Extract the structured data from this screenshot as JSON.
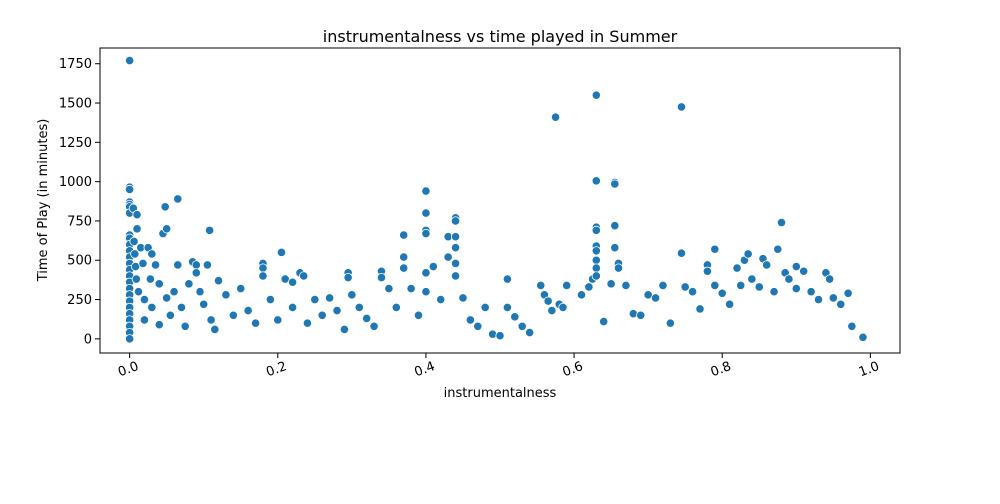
{
  "chart_data": {
    "type": "scatter",
    "title": "instrumentalness vs time played in Summer",
    "xlabel": "instrumentalness",
    "ylabel": "Time of Play (in minutes)",
    "xlim": [
      -0.04,
      1.04
    ],
    "ylim": [
      -90,
      1850
    ],
    "xticks": [
      0.0,
      0.2,
      0.4,
      0.6,
      0.8,
      1.0
    ],
    "xtick_labels": [
      "0.0",
      "0.2",
      "0.4",
      "0.6",
      "0.8",
      "1.0"
    ],
    "yticks": [
      0,
      250,
      500,
      750,
      1000,
      1250,
      1500,
      1750
    ],
    "ytick_labels": [
      "0",
      "250",
      "500",
      "750",
      "1000",
      "1250",
      "1500",
      "1750"
    ],
    "grid": false,
    "legend": "none",
    "marker_color": "#1f77b4",
    "marker_edge_color": "#ffffff",
    "x_tick_rotation_deg": 20,
    "series": [
      {
        "points": [
          [
            0.0,
            1770
          ],
          [
            0.0,
            965
          ],
          [
            0.0,
            950
          ],
          [
            0.0,
            870
          ],
          [
            0.0,
            855
          ],
          [
            0.0,
            840
          ],
          [
            0.0,
            800
          ],
          [
            0.0,
            660
          ],
          [
            0.0,
            640
          ],
          [
            0.0,
            600
          ],
          [
            0.0,
            560
          ],
          [
            0.0,
            520
          ],
          [
            0.0,
            480
          ],
          [
            0.0,
            440
          ],
          [
            0.0,
            400
          ],
          [
            0.0,
            360
          ],
          [
            0.0,
            320
          ],
          [
            0.0,
            280
          ],
          [
            0.0,
            240
          ],
          [
            0.0,
            200
          ],
          [
            0.0,
            160
          ],
          [
            0.0,
            120
          ],
          [
            0.0,
            80
          ],
          [
            0.0,
            40
          ],
          [
            0.0,
            0
          ],
          [
            0.005,
            830
          ],
          [
            0.006,
            620
          ],
          [
            0.007,
            540
          ],
          [
            0.008,
            460
          ],
          [
            0.009,
            380
          ],
          [
            0.01,
            790
          ],
          [
            0.01,
            700
          ],
          [
            0.012,
            300
          ],
          [
            0.015,
            580
          ],
          [
            0.018,
            480
          ],
          [
            0.02,
            250
          ],
          [
            0.02,
            120
          ],
          [
            0.025,
            580
          ],
          [
            0.028,
            380
          ],
          [
            0.03,
            540
          ],
          [
            0.03,
            200
          ],
          [
            0.035,
            470
          ],
          [
            0.04,
            350
          ],
          [
            0.04,
            90
          ],
          [
            0.045,
            670
          ],
          [
            0.048,
            840
          ],
          [
            0.05,
            700
          ],
          [
            0.05,
            260
          ],
          [
            0.055,
            150
          ],
          [
            0.06,
            300
          ],
          [
            0.065,
            890
          ],
          [
            0.065,
            470
          ],
          [
            0.07,
            200
          ],
          [
            0.075,
            80
          ],
          [
            0.08,
            350
          ],
          [
            0.085,
            490
          ],
          [
            0.09,
            470
          ],
          [
            0.09,
            420
          ],
          [
            0.095,
            300
          ],
          [
            0.1,
            220
          ],
          [
            0.105,
            470
          ],
          [
            0.108,
            690
          ],
          [
            0.11,
            120
          ],
          [
            0.115,
            60
          ],
          [
            0.12,
            370
          ],
          [
            0.13,
            280
          ],
          [
            0.14,
            150
          ],
          [
            0.15,
            320
          ],
          [
            0.16,
            180
          ],
          [
            0.17,
            100
          ],
          [
            0.18,
            480
          ],
          [
            0.18,
            450
          ],
          [
            0.18,
            400
          ],
          [
            0.19,
            250
          ],
          [
            0.2,
            120
          ],
          [
            0.205,
            550
          ],
          [
            0.21,
            380
          ],
          [
            0.22,
            360
          ],
          [
            0.22,
            200
          ],
          [
            0.23,
            420
          ],
          [
            0.235,
            400
          ],
          [
            0.24,
            100
          ],
          [
            0.25,
            250
          ],
          [
            0.26,
            150
          ],
          [
            0.27,
            260
          ],
          [
            0.28,
            180
          ],
          [
            0.29,
            60
          ],
          [
            0.295,
            420
          ],
          [
            0.295,
            390
          ],
          [
            0.3,
            280
          ],
          [
            0.31,
            200
          ],
          [
            0.32,
            130
          ],
          [
            0.33,
            80
          ],
          [
            0.34,
            430
          ],
          [
            0.34,
            390
          ],
          [
            0.35,
            320
          ],
          [
            0.36,
            200
          ],
          [
            0.37,
            660
          ],
          [
            0.37,
            520
          ],
          [
            0.37,
            450
          ],
          [
            0.38,
            320
          ],
          [
            0.39,
            150
          ],
          [
            0.4,
            940
          ],
          [
            0.4,
            800
          ],
          [
            0.4,
            690
          ],
          [
            0.4,
            670
          ],
          [
            0.4,
            420
          ],
          [
            0.4,
            300
          ],
          [
            0.41,
            460
          ],
          [
            0.42,
            250
          ],
          [
            0.43,
            650
          ],
          [
            0.43,
            520
          ],
          [
            0.44,
            770
          ],
          [
            0.44,
            750
          ],
          [
            0.44,
            650
          ],
          [
            0.44,
            580
          ],
          [
            0.44,
            480
          ],
          [
            0.44,
            400
          ],
          [
            0.45,
            260
          ],
          [
            0.46,
            120
          ],
          [
            0.47,
            80
          ],
          [
            0.48,
            200
          ],
          [
            0.49,
            30
          ],
          [
            0.5,
            20
          ],
          [
            0.51,
            380
          ],
          [
            0.51,
            200
          ],
          [
            0.52,
            140
          ],
          [
            0.53,
            80
          ],
          [
            0.54,
            40
          ],
          [
            0.555,
            340
          ],
          [
            0.56,
            280
          ],
          [
            0.565,
            240
          ],
          [
            0.57,
            180
          ],
          [
            0.575,
            1410
          ],
          [
            0.58,
            220
          ],
          [
            0.585,
            200
          ],
          [
            0.59,
            340
          ],
          [
            0.61,
            280
          ],
          [
            0.62,
            330
          ],
          [
            0.625,
            380
          ],
          [
            0.63,
            1550
          ],
          [
            0.63,
            1005
          ],
          [
            0.63,
            710
          ],
          [
            0.63,
            690
          ],
          [
            0.63,
            590
          ],
          [
            0.63,
            560
          ],
          [
            0.63,
            500
          ],
          [
            0.63,
            450
          ],
          [
            0.63,
            400
          ],
          [
            0.64,
            110
          ],
          [
            0.65,
            350
          ],
          [
            0.655,
            995
          ],
          [
            0.655,
            985
          ],
          [
            0.655,
            720
          ],
          [
            0.655,
            580
          ],
          [
            0.66,
            480
          ],
          [
            0.66,
            450
          ],
          [
            0.67,
            340
          ],
          [
            0.68,
            160
          ],
          [
            0.69,
            150
          ],
          [
            0.7,
            280
          ],
          [
            0.71,
            260
          ],
          [
            0.72,
            340
          ],
          [
            0.73,
            100
          ],
          [
            0.745,
            1475
          ],
          [
            0.745,
            545
          ],
          [
            0.75,
            330
          ],
          [
            0.76,
            300
          ],
          [
            0.77,
            190
          ],
          [
            0.78,
            470
          ],
          [
            0.78,
            430
          ],
          [
            0.79,
            570
          ],
          [
            0.79,
            340
          ],
          [
            0.8,
            290
          ],
          [
            0.81,
            220
          ],
          [
            0.82,
            450
          ],
          [
            0.825,
            340
          ],
          [
            0.83,
            500
          ],
          [
            0.835,
            540
          ],
          [
            0.84,
            380
          ],
          [
            0.85,
            330
          ],
          [
            0.855,
            510
          ],
          [
            0.86,
            470
          ],
          [
            0.87,
            300
          ],
          [
            0.875,
            570
          ],
          [
            0.88,
            740
          ],
          [
            0.885,
            420
          ],
          [
            0.89,
            380
          ],
          [
            0.9,
            460
          ],
          [
            0.9,
            320
          ],
          [
            0.91,
            430
          ],
          [
            0.92,
            300
          ],
          [
            0.93,
            250
          ],
          [
            0.94,
            420
          ],
          [
            0.945,
            380
          ],
          [
            0.95,
            260
          ],
          [
            0.96,
            220
          ],
          [
            0.97,
            290
          ],
          [
            0.975,
            80
          ],
          [
            0.99,
            10
          ]
        ]
      }
    ]
  }
}
